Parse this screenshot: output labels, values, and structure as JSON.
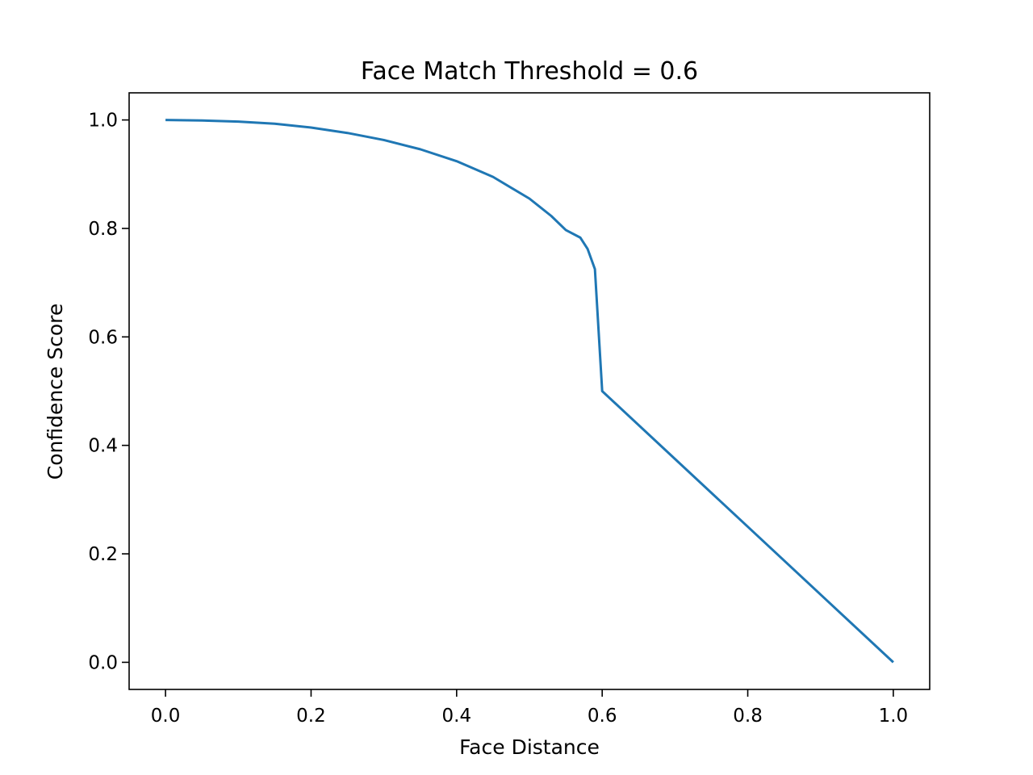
{
  "chart_data": {
    "type": "line",
    "title": "Face Match Threshold = 0.6",
    "xlabel": "Face Distance",
    "ylabel": "Confidence Score",
    "xlim": [
      -0.05,
      1.05
    ],
    "ylim": [
      -0.05,
      1.05
    ],
    "xticks": [
      0.0,
      0.2,
      0.4,
      0.6,
      0.8,
      1.0
    ],
    "xtick_labels": [
      "0.0",
      "0.2",
      "0.4",
      "0.6",
      "0.8",
      "1.0"
    ],
    "yticks": [
      0.0,
      0.2,
      0.4,
      0.6,
      0.8,
      1.0
    ],
    "ytick_labels": [
      "0.0",
      "0.2",
      "0.4",
      "0.6",
      "0.8",
      "1.0"
    ],
    "grid": false,
    "series": [
      {
        "color": "#1f77b4",
        "x": [
          0.0,
          0.05,
          0.1,
          0.15,
          0.2,
          0.25,
          0.3,
          0.35,
          0.4,
          0.45,
          0.5,
          0.53,
          0.55,
          0.57,
          0.58,
          0.59,
          0.6,
          0.7,
          0.8,
          0.9,
          1.0
        ],
        "y": [
          1.0,
          0.999,
          0.997,
          0.993,
          0.986,
          0.976,
          0.963,
          0.946,
          0.924,
          0.895,
          0.855,
          0.823,
          0.797,
          0.783,
          0.762,
          0.725,
          0.5,
          0.375,
          0.25,
          0.125,
          0.0
        ]
      }
    ]
  }
}
